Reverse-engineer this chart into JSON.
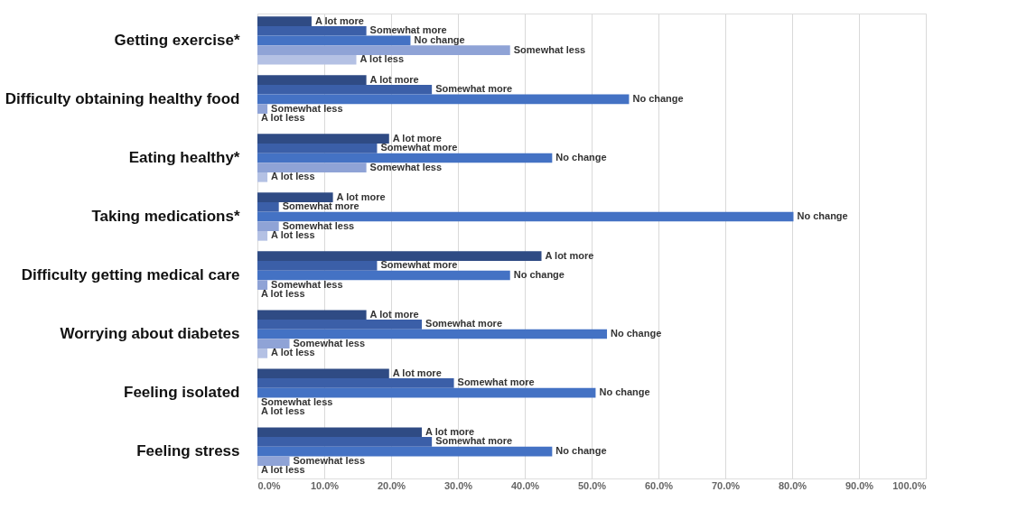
{
  "chart_data": {
    "type": "bar",
    "orientation": "horizontal",
    "categories": [
      "Getting exercise*",
      "Difficulty obtaining healthy food",
      "Eating healthy*",
      "Taking medications*",
      "Difficulty getting medical care",
      "Worrying about diabetes",
      "Feeling isolated",
      "Feeling stress"
    ],
    "series": [
      {
        "name": "A lot more",
        "color": "#2f4b84",
        "values": [
          8.1,
          16.3,
          19.7,
          11.3,
          42.5,
          16.3,
          19.7,
          24.6
        ]
      },
      {
        "name": "Somewhat more",
        "color": "#3b5fa8",
        "values": [
          16.3,
          26.1,
          17.9,
          3.2,
          17.9,
          24.6,
          29.4,
          26.1
        ]
      },
      {
        "name": "No change",
        "color": "#4472c4",
        "values": [
          22.9,
          55.6,
          44.1,
          80.2,
          37.8,
          52.3,
          50.6,
          44.1
        ]
      },
      {
        "name": "Somewhat less",
        "color": "#8fa3d6",
        "values": [
          37.8,
          1.5,
          16.3,
          3.2,
          1.5,
          4.8,
          0,
          4.8
        ]
      },
      {
        "name": "A lot less",
        "color": "#b4c1e4",
        "values": [
          14.8,
          0,
          1.5,
          1.5,
          0,
          1.5,
          0,
          0
        ]
      }
    ],
    "xlim": [
      0,
      100
    ],
    "xticks": [
      {
        "value": 0,
        "label": "0.0%"
      },
      {
        "value": 10,
        "label": "10.0%"
      },
      {
        "value": 20,
        "label": "20.0%"
      },
      {
        "value": 30,
        "label": "30.0%"
      },
      {
        "value": 40,
        "label": "40.0%"
      },
      {
        "value": 50,
        "label": "50.0%"
      },
      {
        "value": 60,
        "label": "60.0%"
      },
      {
        "value": 70,
        "label": "70.0%"
      },
      {
        "value": 80,
        "label": "80.0%"
      },
      {
        "value": 90,
        "label": "90.0%"
      },
      {
        "value": 100,
        "label": "100.0%"
      }
    ],
    "grid": true
  }
}
